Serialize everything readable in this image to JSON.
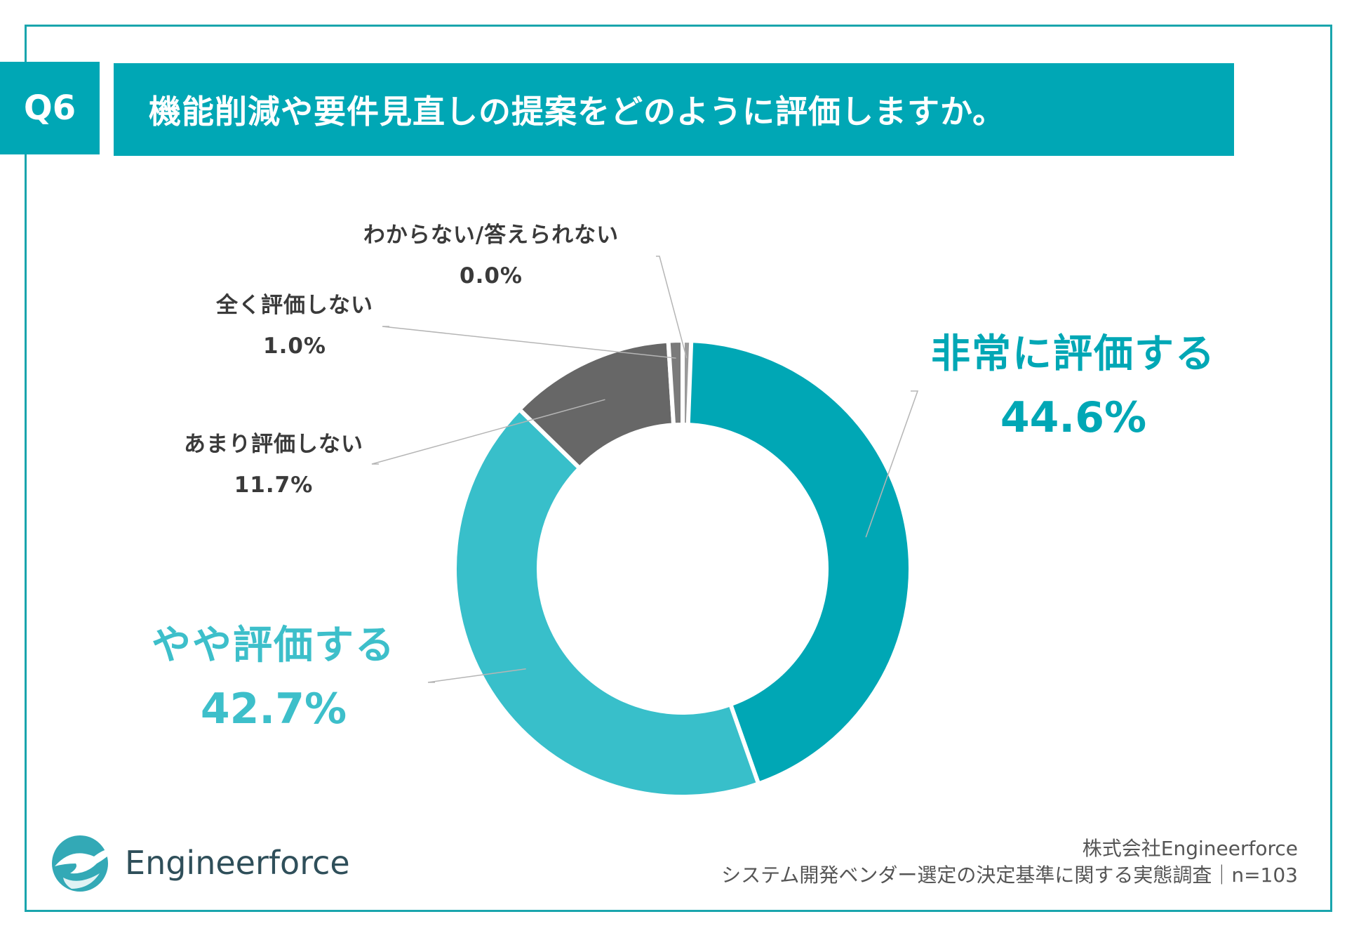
{
  "header": {
    "badge": "Q6",
    "title": "機能削減や要件見直しの提案をどのように評価しますか。"
  },
  "chart_data": {
    "type": "pie",
    "donut": true,
    "categories": [
      "非常に評価する",
      "やや評価する",
      "あまり評価しない",
      "全く評価しない",
      "わからない/答えられない"
    ],
    "values": [
      44.6,
      42.7,
      11.7,
      1.0,
      0.0
    ],
    "value_labels": [
      "44.6%",
      "42.7%",
      "11.7%",
      "1.0%",
      "0.0%"
    ],
    "colors": [
      "#00a7b5",
      "#38bfca",
      "#676767",
      "#7a7a7a",
      "#9a9a9a"
    ]
  },
  "footer": {
    "company": "株式会社Engineerforce",
    "survey": "システム開発ベンダー選定の決定基準に関する実態調査｜n=103"
  },
  "logo": {
    "text": "Engineerforce",
    "icon": "wave-bird-logo-icon"
  }
}
